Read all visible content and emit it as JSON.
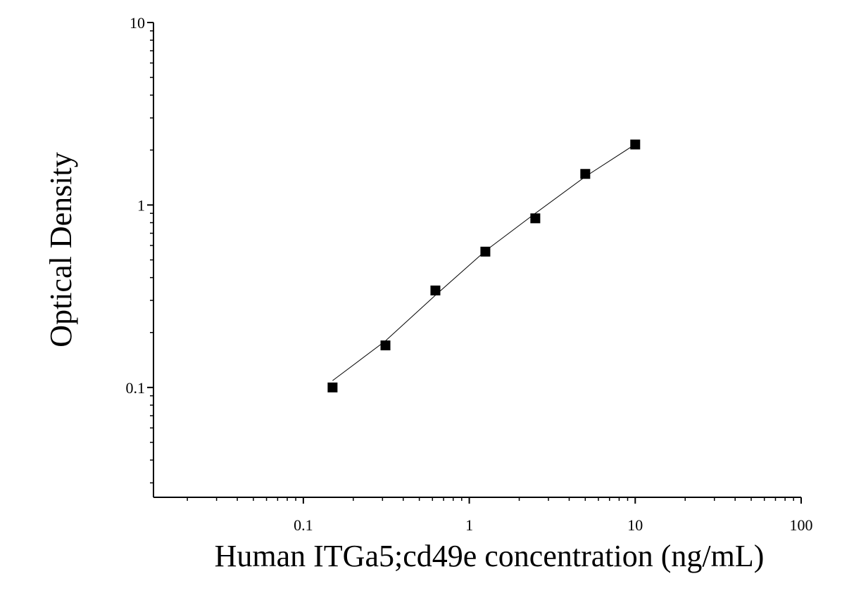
{
  "chart_data": {
    "type": "scatter",
    "xlabel": "Human ITGa5;cd49e concentration (ng/mL)",
    "ylabel": "Optical Density",
    "xscale": "log",
    "yscale": "log",
    "xlim": [
      0.0125,
      100
    ],
    "ylim": [
      0.025,
      10
    ],
    "xticks": [
      0.1,
      1,
      10,
      100
    ],
    "yticks": [
      0.1,
      1,
      10
    ],
    "xminorticks": [
      0.02,
      0.03,
      0.04,
      0.05,
      0.06,
      0.07,
      0.08,
      0.09,
      0.2,
      0.3,
      0.4,
      0.5,
      0.6,
      0.7,
      0.8,
      0.9,
      2,
      3,
      4,
      5,
      6,
      7,
      8,
      9,
      20,
      30,
      40,
      50,
      60,
      70,
      80,
      90
    ],
    "yminorticks": [
      0.03,
      0.04,
      0.05,
      0.06,
      0.07,
      0.08,
      0.09,
      0.2,
      0.3,
      0.4,
      0.5,
      0.6,
      0.7,
      0.8,
      0.9,
      2,
      3,
      4,
      5,
      6,
      7,
      8,
      9
    ],
    "series": [
      {
        "kind": "points",
        "color": "#000000",
        "x": [
          0.15,
          0.3125,
          0.625,
          1.25,
          2.5,
          5,
          10
        ],
        "values": [
          0.1,
          0.17,
          0.34,
          0.555,
          0.845,
          1.48,
          2.145
        ]
      },
      {
        "kind": "fit",
        "color": "#000000",
        "x": [
          0.15,
          0.3125,
          0.625,
          1.25,
          2.5,
          5,
          10
        ],
        "values": [
          0.109,
          0.18,
          0.32,
          0.56,
          0.9,
          1.43,
          2.15
        ]
      }
    ]
  }
}
